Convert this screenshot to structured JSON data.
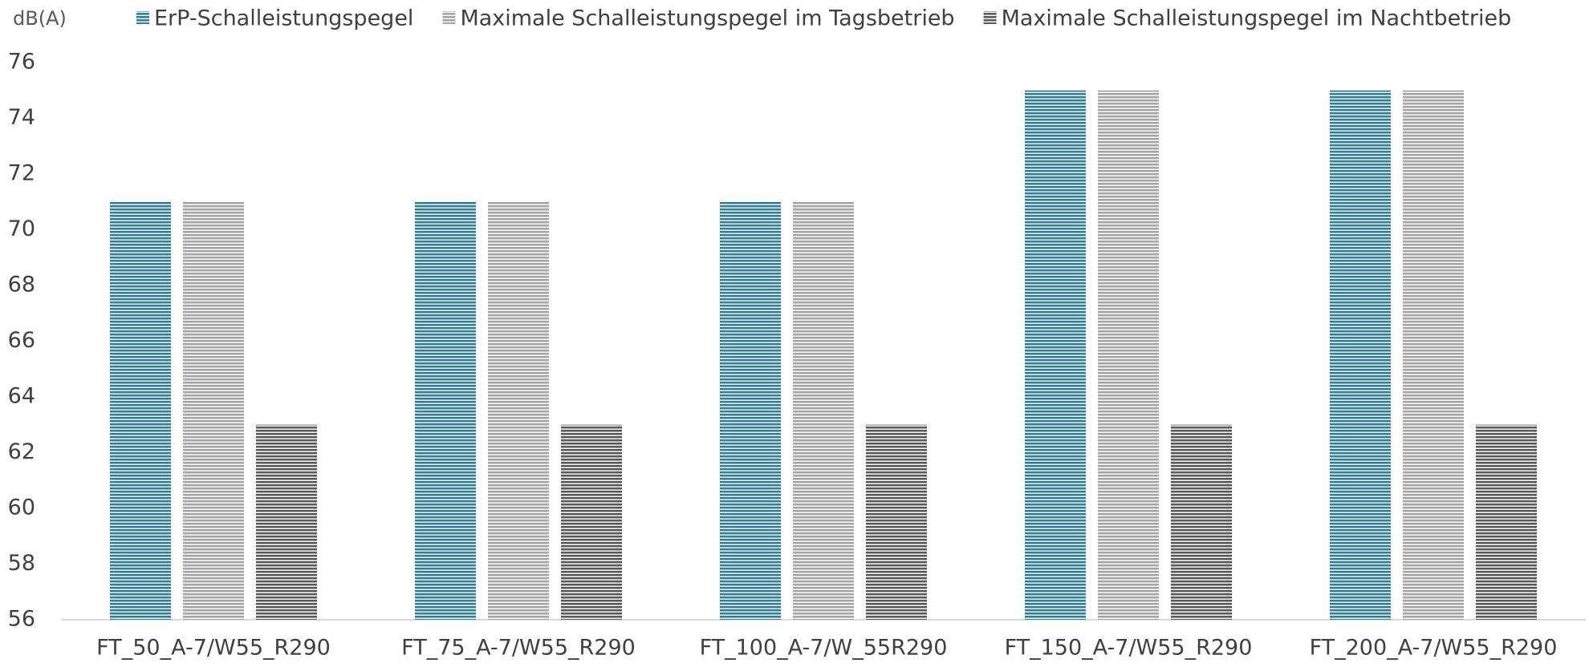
{
  "chart_data": {
    "type": "bar",
    "y_axis_label": "dB(A)",
    "categories": [
      "FT_50_A-7/W55_R290",
      "FT_75_A-7/W55_R290",
      "FT_100_A-7/W_55R290",
      "FT_150_A-7/W55_R290",
      "FT_200_A-7/W55_R290"
    ],
    "series": [
      {
        "name": "ErP-Schalleistungspegel",
        "color": "#2f7f9e",
        "values": [
          71,
          71,
          71,
          75,
          75
        ]
      },
      {
        "name": "Maximale Schalleistungspegel im Tagsbetrieb",
        "color": "#a5a5a5",
        "values": [
          71,
          71,
          71,
          75,
          75
        ]
      },
      {
        "name": "Maximale Schalleistungspegel im Nachtbetrieb",
        "color": "#5a5a5a",
        "values": [
          63,
          63,
          63,
          63,
          63
        ]
      }
    ],
    "ylim": [
      56,
      76
    ],
    "yticks": [
      56,
      58,
      60,
      62,
      64,
      66,
      68,
      70,
      72,
      74,
      76
    ],
    "legend": "top",
    "pattern": "horizontal-stripes"
  }
}
